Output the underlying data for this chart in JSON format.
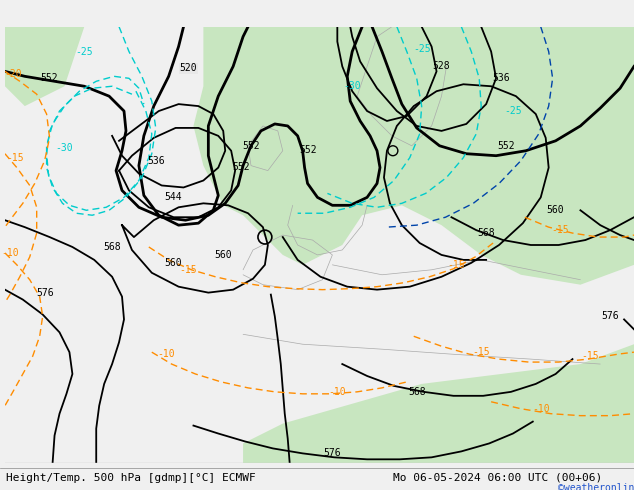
{
  "title_left": "Height/Temp. 500 hPa [gdmp][°C] ECMWF",
  "title_right": "Mo 06-05-2024 06:00 UTC (00+06)",
  "credit": "©weatheronline.co.uk",
  "background_land": "#c8e6c0",
  "background_sea": "#e8e8e8",
  "coast_color": "#aaaaaa",
  "z500_color": "#000000",
  "temp_warm_color": "#ff8c00",
  "temp_cold_color": "#00bfff",
  "temp_cyan_color": "#00cccc",
  "label_color_black": "#000000",
  "label_color_orange": "#ff8c00",
  "label_color_cyan": "#00cccc",
  "label_color_blue": "#0000aa",
  "figsize": [
    6.34,
    4.9
  ],
  "dpi": 100
}
